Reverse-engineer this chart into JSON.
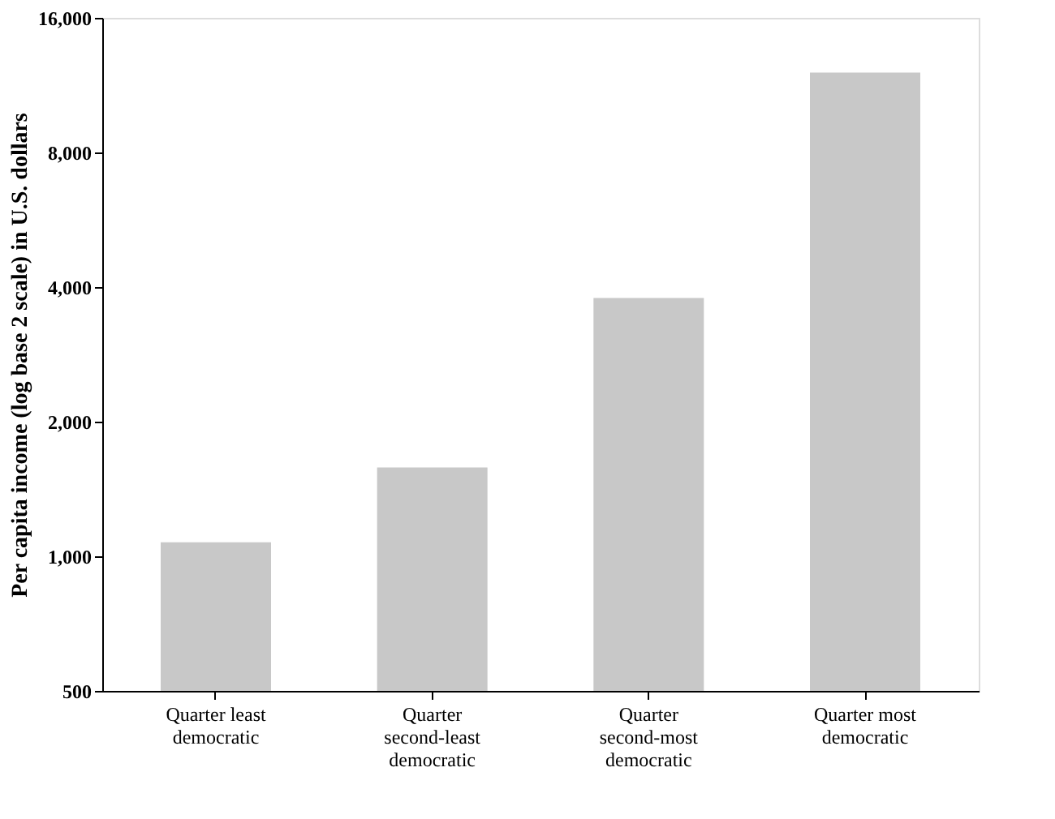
{
  "chart_data": {
    "type": "bar",
    "ylabel": "Per capita income (log base 2 scale) in U.S. dollars",
    "categories": [
      "Quarter least democratic",
      "Quarter second-least democratic",
      "Quarter second-most democratic",
      "Quarter most democratic"
    ],
    "values": [
      1075,
      1580,
      3780,
      12070
    ],
    "color": "#c8c8c8",
    "log": "y",
    "ylim": [
      500,
      16000
    ],
    "yticks": [
      500,
      {
        "value": 1000,
        "label": "1,000"
      },
      {
        "value": 2000,
        "label": "2,000"
      },
      {
        "value": 4000,
        "label": "4,000"
      },
      {
        "value": 8000,
        "label": "8,000"
      },
      {
        "value": 16000,
        "label": "16,000"
      }
    ],
    "grid": false
  }
}
